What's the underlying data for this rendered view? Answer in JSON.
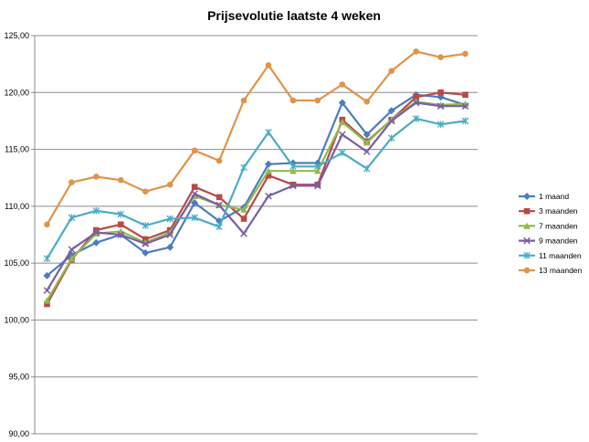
{
  "chart_data": {
    "type": "line",
    "title": "Prijsevolutie laatste 4 weken",
    "xlabel": "",
    "ylabel": "",
    "ylim": [
      90,
      125
    ],
    "yticks": [
      "90,00",
      "95,00",
      "100,00",
      "105,00",
      "110,00",
      "115,00",
      "120,00",
      "125,00"
    ],
    "grid": "horizontal",
    "legend_position": "right",
    "series": [
      {
        "name": "1 maand",
        "color": "#4a7dbf",
        "marker": "diamond",
        "values": [
          103.9,
          105.7,
          106.8,
          107.5,
          105.9,
          106.4,
          110.3,
          108.7,
          109.9,
          113.7,
          113.8,
          113.8,
          119.1,
          116.3,
          118.4,
          119.8,
          119.6,
          118.9
        ]
      },
      {
        "name": "3 maanden",
        "color": "#b84a46",
        "marker": "square",
        "values": [
          101.4,
          105.3,
          107.9,
          108.4,
          107.1,
          107.9,
          111.7,
          110.8,
          108.9,
          112.7,
          111.9,
          111.9,
          117.6,
          115.7,
          117.6,
          119.6,
          120.0,
          119.8
        ]
      },
      {
        "name": "7 maanden",
        "color": "#92b94f",
        "marker": "triangle",
        "values": [
          101.7,
          105.4,
          107.6,
          107.8,
          106.8,
          107.7,
          110.9,
          110.1,
          109.7,
          113.1,
          113.1,
          113.1,
          117.4,
          115.6,
          117.6,
          119.2,
          118.9,
          119.0
        ]
      },
      {
        "name": "9 maanden",
        "color": "#7b5da4",
        "marker": "x",
        "values": [
          102.6,
          106.2,
          107.7,
          107.5,
          106.7,
          107.5,
          111.1,
          110.1,
          107.6,
          110.9,
          111.8,
          111.8,
          116.3,
          114.8,
          117.5,
          119.1,
          118.8,
          118.8
        ]
      },
      {
        "name": "11 maanden",
        "color": "#4bacc6",
        "marker": "star",
        "values": [
          105.4,
          109.0,
          109.6,
          109.3,
          108.3,
          108.9,
          109.0,
          108.2,
          113.4,
          116.5,
          113.5,
          113.5,
          114.7,
          113.3,
          116.0,
          117.7,
          117.2,
          117.5
        ]
      },
      {
        "name": "13 maanden",
        "color": "#e0944a",
        "marker": "circle",
        "values": [
          108.4,
          112.1,
          112.6,
          112.3,
          111.3,
          111.9,
          114.9,
          114.0,
          119.3,
          122.4,
          119.3,
          119.3,
          120.7,
          119.2,
          121.9,
          123.6,
          123.1,
          123.4
        ]
      }
    ]
  }
}
